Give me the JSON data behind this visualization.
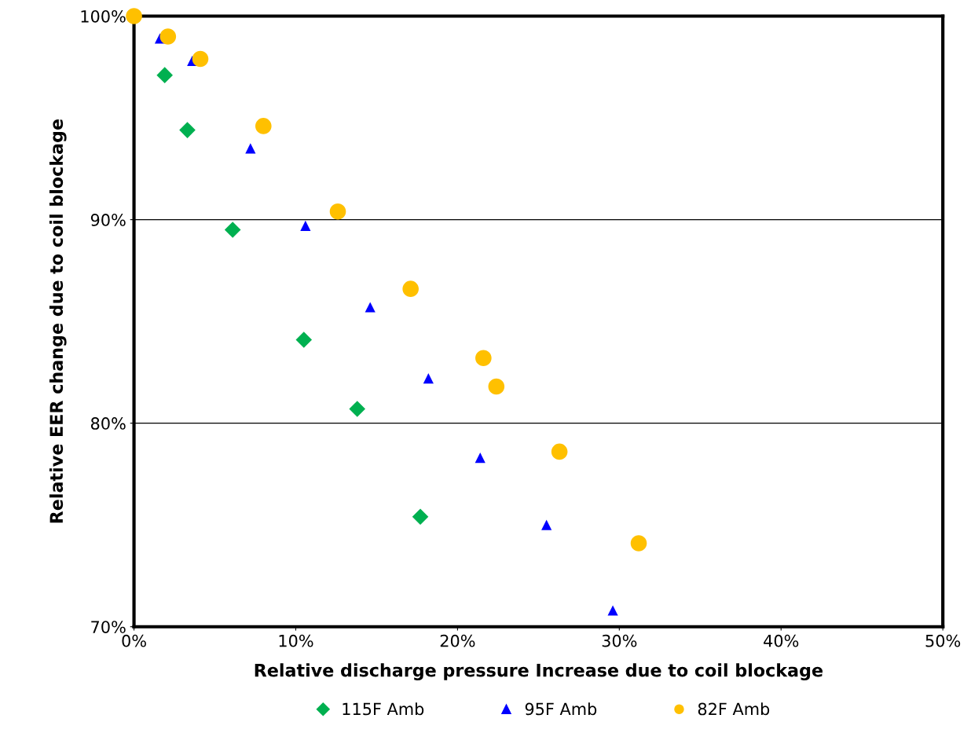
{
  "chart_data": {
    "type": "scatter",
    "xlabel": "Relative discharge pressure Increase due to coil blockage",
    "ylabel": "Relative EER change due to coil blockage",
    "xlim": [
      0,
      50
    ],
    "ylim": [
      70,
      100
    ],
    "xticks": [
      {
        "value": 0,
        "label": "0%"
      },
      {
        "value": 10,
        "label": "10%"
      },
      {
        "value": 20,
        "label": "20%"
      },
      {
        "value": 30,
        "label": "30%"
      },
      {
        "value": 40,
        "label": "40%"
      },
      {
        "value": 50,
        "label": "50%"
      }
    ],
    "yticks": [
      {
        "value": 70,
        "label": "70%"
      },
      {
        "value": 80,
        "label": "80%"
      },
      {
        "value": 90,
        "label": "90%"
      },
      {
        "value": 100,
        "label": "100%"
      }
    ],
    "grid": "y",
    "legend": "bottom",
    "series": [
      {
        "name": "115F Amb",
        "color": "#00b050",
        "marker": "diamond",
        "x": [
          1.9,
          3.3,
          6.1,
          10.5,
          13.8,
          17.7
        ],
        "values": [
          97.1,
          94.4,
          89.5,
          84.1,
          80.7,
          75.4
        ]
      },
      {
        "name": "95F Amb",
        "color": "#0000ff",
        "marker": "triangle",
        "x": [
          1.6,
          3.6,
          7.2,
          10.6,
          14.6,
          18.2,
          21.4,
          25.5,
          29.6
        ],
        "values": [
          98.9,
          97.8,
          93.5,
          89.7,
          85.7,
          82.2,
          78.3,
          75.0,
          70.8
        ]
      },
      {
        "name": "82F Amb",
        "color": "#ffc000",
        "marker": "circle",
        "x": [
          0,
          2.1,
          4.1,
          8.0,
          12.6,
          17.1,
          21.6,
          22.4,
          26.3,
          31.2
        ],
        "values": [
          100,
          99.0,
          97.9,
          94.6,
          90.4,
          86.6,
          83.2,
          81.8,
          78.6,
          74.1
        ]
      }
    ]
  }
}
